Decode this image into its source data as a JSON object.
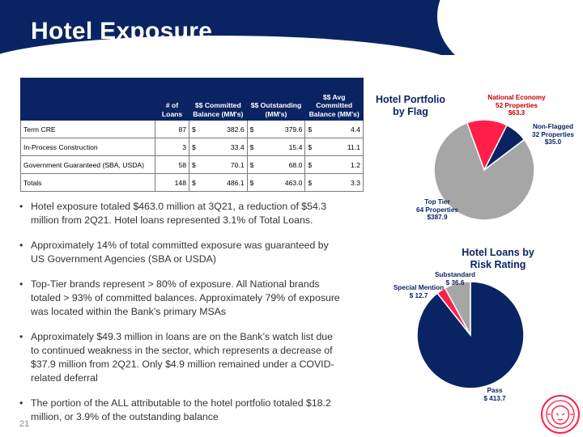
{
  "header": {
    "title": "Hotel Exposure"
  },
  "table": {
    "headers": [
      "",
      "# of Loans",
      "$$ Committed Balance (MM's)",
      "$$ Outstanding (MM's)",
      "$$ Avg Committed Balance (MM's)"
    ],
    "rows": [
      {
        "label": "Term CRE",
        "loans": "87",
        "committed": "382.6",
        "outstanding": "379.6",
        "avg": "4.4"
      },
      {
        "label": "In-Process Construction",
        "loans": "3",
        "committed": "33.4",
        "outstanding": "15.4",
        "avg": "11.1"
      },
      {
        "label": "Government Guaranteed (SBA, USDA)",
        "loans": "58",
        "committed": "70.1",
        "outstanding": "68.0",
        "avg": "1.2"
      },
      {
        "label": "Totals",
        "loans": "148",
        "committed": "486.1",
        "outstanding": "463.0",
        "avg": "3.3"
      }
    ],
    "currency": "$"
  },
  "bullets": [
    "Hotel exposure totaled $463.0 million at 3Q21, a reduction of $54.3 million from 2Q21.  Hotel loans represented 3.1% of Total Loans.",
    "Approximately 14% of total committed exposure was guaranteed by US Government Agencies (SBA or USDA)",
    "Top-Tier brands represent > 80% of exposure. All National brands totaled > 93% of committed balances.  Approximately 79% of exposure was located within the Bank’s primary MSAs",
    "Approximately $49.3 million in loans are on the Bank’s watch list due to continued weakness in the sector, which represents a decrease of $37.9 million from 2Q21. Only $4.9 million remained under a COVID-related deferral",
    "The portion of the ALL attributable to the hotel portfolio totaled $18.2 million, or 3.9% of the outstanding balance"
  ],
  "page_number": "21",
  "chart_data": [
    {
      "type": "pie",
      "title": "Hotel Portfolio by Flag",
      "slices": [
        {
          "name": "National Economy",
          "sub": "52 Properties",
          "value": 63.3,
          "value_label": "$63.3",
          "color": "#ff1f48"
        },
        {
          "name": "Non-Flagged",
          "sub": "32 Properties",
          "value": 35.0,
          "value_label": "$35.0",
          "color": "#0a2463"
        },
        {
          "name": "Top Tier",
          "sub": "64 Properties",
          "value": 387.9,
          "value_label": "$387.9",
          "color": "#a6a6a6"
        }
      ]
    },
    {
      "type": "pie",
      "title": "Hotel Loans by Risk Rating",
      "slices": [
        {
          "name": "Pass",
          "value": 413.7,
          "value_label": "$ 413.7",
          "color": "#0a2463"
        },
        {
          "name": "Special Mention",
          "value": 12.7,
          "value_label": "$ 12.7",
          "color": "#ff1f48"
        },
        {
          "name": "Substandard",
          "value": 36.6,
          "value_label": "$ 36.6",
          "color": "#a6a6a6"
        }
      ]
    }
  ]
}
